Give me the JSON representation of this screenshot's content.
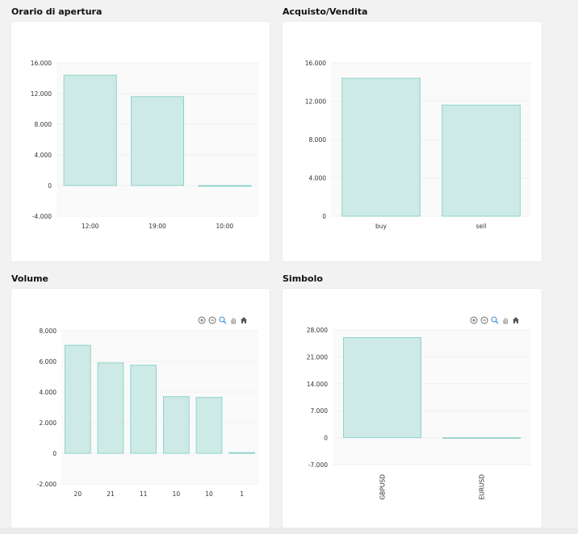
{
  "colors": {
    "bar_fill": "#cdeae6",
    "bar_stroke": "#8fd3c9",
    "plot_bg": "#fafafa",
    "grid": "#ededed",
    "tick_text": "#333333",
    "card_bg": "#ffffff",
    "page_bg": "#f2f2f2"
  },
  "toolbar_icons": [
    "zoom-in-icon",
    "zoom-out-icon",
    "magnifier-icon",
    "pan-hand-icon",
    "home-icon"
  ],
  "chart_data": [
    {
      "id": "orario",
      "type": "bar",
      "title": "Orario di apertura",
      "categories": [
        "12:00",
        "19:00",
        "10:00"
      ],
      "values": [
        14400,
        11600,
        -100
      ],
      "ylim": [
        -4000,
        16000
      ],
      "yticks": [
        -4000,
        0,
        4000,
        8000,
        12000,
        16000
      ],
      "ytick_labels": [
        "-4.000",
        "0",
        "4.000",
        "8.000",
        "12.000",
        "16.000"
      ],
      "xlabel": "",
      "ylabel": "",
      "grid": true,
      "rotate_xticks": false,
      "toolbar": false
    },
    {
      "id": "acquisto",
      "type": "bar",
      "title": "Acquisto/Vendita",
      "categories": [
        "buy",
        "sell"
      ],
      "values": [
        14400,
        11600
      ],
      "ylim": [
        0,
        16000
      ],
      "yticks": [
        0,
        4000,
        8000,
        12000,
        16000
      ],
      "ytick_labels": [
        "0",
        "4.000",
        "8.000",
        "12.000",
        "16.000"
      ],
      "xlabel": "",
      "ylabel": "",
      "grid": true,
      "rotate_xticks": false,
      "toolbar": false
    },
    {
      "id": "volume",
      "type": "bar",
      "title": "Volume",
      "categories": [
        "20",
        "21",
        "11",
        "10",
        "10",
        "1"
      ],
      "values": [
        7050,
        5900,
        5750,
        3700,
        3650,
        50
      ],
      "ylim": [
        -2000,
        8000
      ],
      "yticks": [
        -2000,
        0,
        2000,
        4000,
        6000,
        8000
      ],
      "ytick_labels": [
        "-2.000",
        "0",
        "2.000",
        "4.000",
        "6.000",
        "8.000"
      ],
      "xlabel": "",
      "ylabel": "",
      "grid": true,
      "rotate_xticks": false,
      "toolbar": true
    },
    {
      "id": "simbolo",
      "type": "bar",
      "title": "Simbolo",
      "categories": [
        "GBPUSD",
        "EURUSD"
      ],
      "values": [
        26000,
        -100
      ],
      "ylim": [
        -7000,
        28000
      ],
      "yticks": [
        -7000,
        0,
        7000,
        14000,
        21000,
        28000
      ],
      "ytick_labels": [
        "-7.000",
        "0",
        "7.000",
        "14.000",
        "21.000",
        "28.000"
      ],
      "xlabel": "",
      "ylabel": "",
      "grid": true,
      "rotate_xticks": true,
      "toolbar": true
    }
  ]
}
